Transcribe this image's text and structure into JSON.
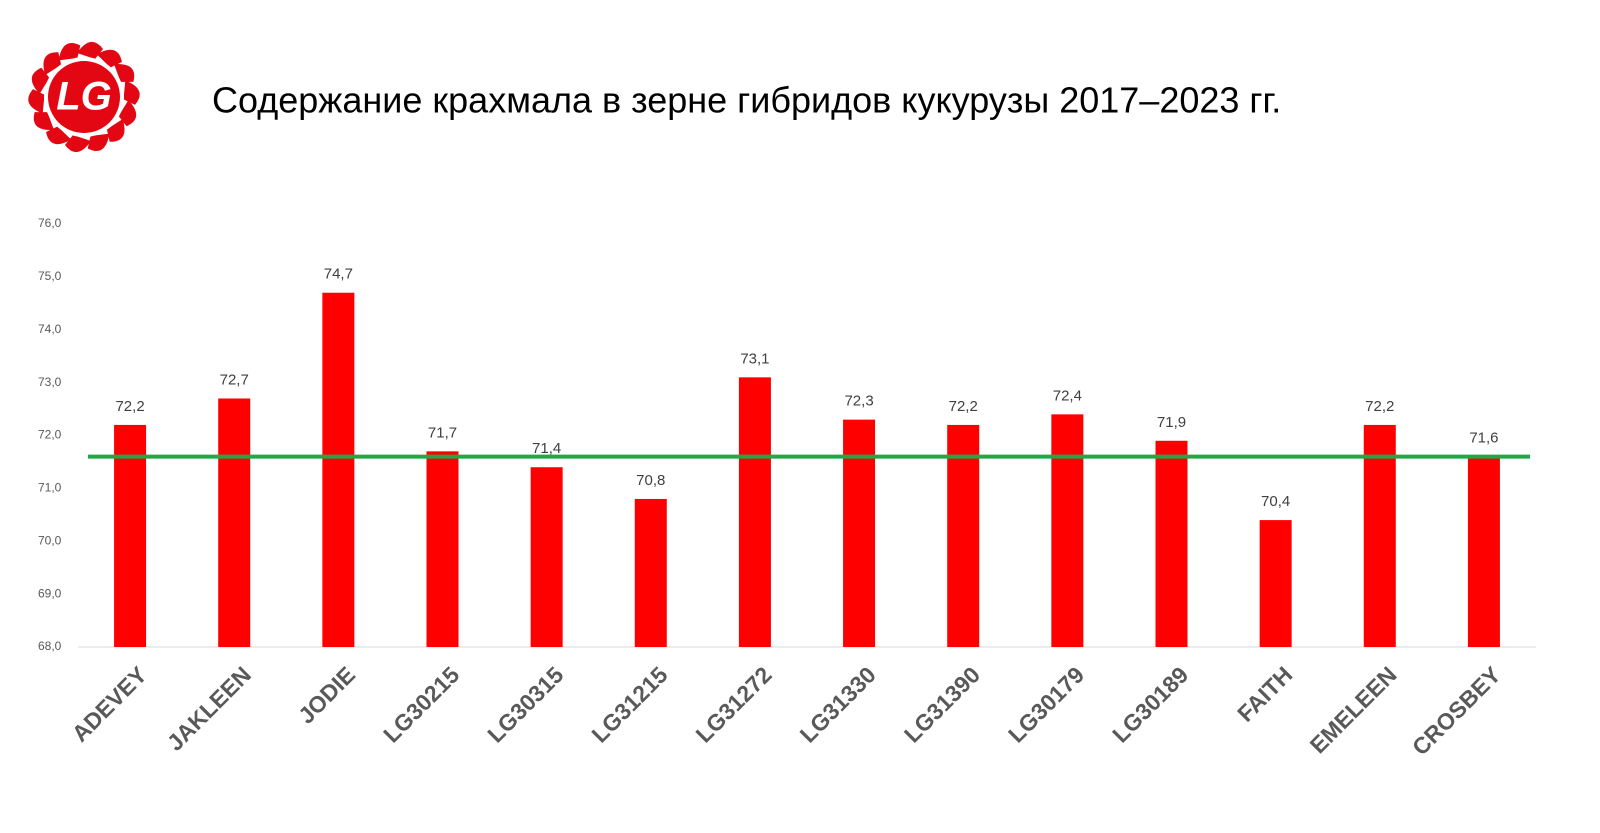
{
  "logo": "LG",
  "chart_data": {
    "type": "bar",
    "title": "Содержание крахмала в зерне гибридов кукурузы 2017–2023 гг.",
    "categories": [
      "ADEVEY",
      "JAKLEEN",
      "JODIE",
      "LG30215",
      "LG30315",
      "LG31215",
      "LG31272",
      "LG31330",
      "LG31390",
      "LG30179",
      "LG30189",
      "FAITH",
      "EMELEEN",
      "CROSBEY"
    ],
    "values": [
      72.2,
      72.7,
      74.7,
      71.7,
      71.4,
      70.8,
      73.1,
      72.3,
      72.2,
      72.4,
      71.9,
      70.4,
      72.2,
      71.6
    ],
    "value_labels": [
      "72,2",
      "72,7",
      "74,7",
      "71,7",
      "71,4",
      "70,8",
      "73,1",
      "72,3",
      "72,2",
      "72,4",
      "71,9",
      "70,4",
      "72,2",
      "71,6"
    ],
    "color": "#ff0000",
    "ylim": [
      68,
      76
    ],
    "yticks": [
      {
        "value": 68,
        "label": "68,0"
      },
      {
        "value": 69,
        "label": "69,0"
      },
      {
        "value": 70,
        "label": "70,0"
      },
      {
        "value": 71,
        "label": "71,0"
      },
      {
        "value": 72,
        "label": "72,0"
      },
      {
        "value": 73,
        "label": "73,0"
      },
      {
        "value": 74,
        "label": "74,0"
      },
      {
        "value": 75,
        "label": "75,0"
      },
      {
        "value": 76,
        "label": "76,0"
      }
    ],
    "grid": false,
    "reference_line": {
      "value": 71.6,
      "color": "#1fa845"
    }
  }
}
